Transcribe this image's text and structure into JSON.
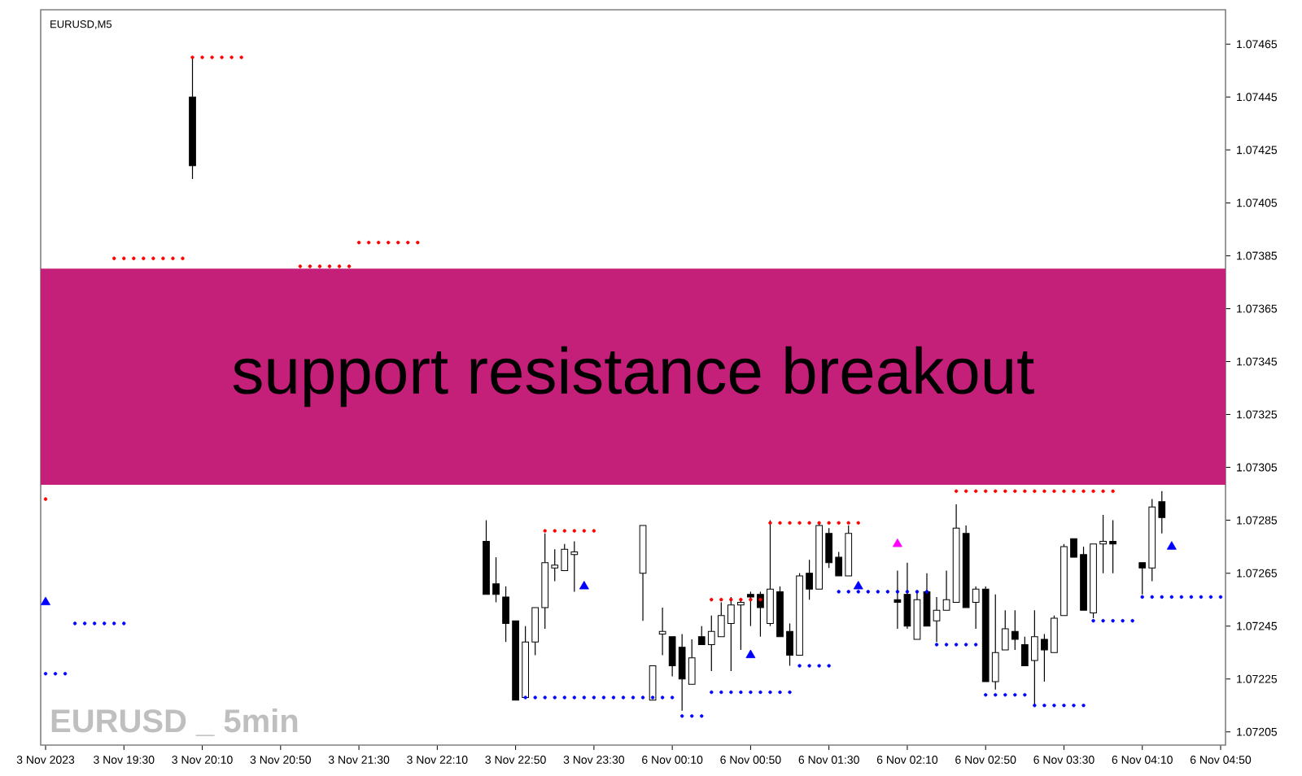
{
  "chart_data": {
    "type": "candlestick",
    "title": "support resistance breakout",
    "annotations": [
      "EURUSD,M5",
      "EURUSD _ 5min"
    ],
    "categories": [
      "3 Nov 2023",
      null,
      null,
      null,
      null,
      null,
      null,
      null,
      "3 Nov 19:30",
      null,
      null,
      null,
      null,
      null,
      null,
      null,
      "3 Nov 20:10",
      null,
      null,
      null,
      null,
      null,
      null,
      null,
      "3 Nov 20:50",
      null,
      null,
      null,
      null,
      null,
      null,
      null,
      "3 Nov 21:30",
      null,
      null,
      null,
      null,
      null,
      null,
      null,
      "3 Nov 22:10",
      null,
      null,
      null,
      null,
      null,
      null,
      null,
      "3 Nov 22:50",
      null,
      null,
      null,
      null,
      null,
      null,
      null,
      "3 Nov 23:30",
      null,
      null,
      null,
      null,
      null,
      null,
      null,
      "6 Nov 00:10",
      null,
      null,
      null,
      null,
      null,
      null,
      null,
      "6 Nov 00:50",
      null,
      null,
      null,
      null,
      null,
      null,
      null,
      "6 Nov 01:30",
      null,
      null,
      null,
      null,
      null,
      null,
      null,
      "6 Nov 02:10",
      null,
      null,
      null,
      null,
      null,
      null,
      null,
      "6 Nov 02:50",
      null,
      null,
      null,
      null,
      null,
      null,
      null,
      "6 Nov 03:30",
      null,
      null,
      null,
      null,
      null,
      null,
      null,
      "6 Nov 04:10",
      null,
      null,
      null,
      null,
      null,
      null,
      null,
      "6 Nov 04:50"
    ],
    "ohlc": [
      null,
      null,
      null,
      null,
      null,
      null,
      null,
      null,
      null,
      null,
      null,
      null,
      null,
      null,
      null,
      [
        1.07445,
        1.0746,
        1.07414,
        1.07419
      ],
      null,
      null,
      null,
      null,
      null,
      null,
      null,
      null,
      null,
      null,
      null,
      null,
      null,
      null,
      null,
      null,
      null,
      null,
      null,
      null,
      null,
      null,
      null,
      null,
      null,
      null,
      null,
      null,
      null,
      [
        1.07277,
        1.07285,
        1.07257,
        1.07257
      ],
      [
        1.07261,
        1.07271,
        1.07254,
        1.07257
      ],
      [
        1.07256,
        1.0726,
        1.07239,
        1.07246
      ],
      [
        1.07247,
        1.07247,
        1.07217,
        1.07217
      ],
      [
        1.07218,
        1.07245,
        1.07218,
        1.07239
      ],
      [
        1.07239,
        1.07252,
        1.07234,
        1.07252
      ],
      [
        1.07252,
        1.0728,
        1.07244,
        1.07269
      ],
      [
        1.07267,
        1.07274,
        1.07262,
        1.07268
      ],
      [
        1.07266,
        1.07276,
        1.07266,
        1.07274
      ],
      [
        1.07272,
        1.07277,
        1.07258,
        1.07273
      ],
      null,
      null,
      null,
      null,
      null,
      null,
      [
        1.07265,
        1.07283,
        1.07247,
        1.07283
      ],
      [
        1.07217,
        1.0723,
        1.07217,
        1.0723
      ],
      [
        1.07242,
        1.07252,
        1.07234,
        1.07243
      ],
      [
        1.07241,
        1.07241,
        1.07226,
        1.0723
      ],
      [
        1.07237,
        1.07242,
        1.07213,
        1.07225
      ],
      [
        1.07223,
        1.0724,
        1.07223,
        1.07233
      ],
      [
        1.07241,
        1.07245,
        1.07238,
        1.07238
      ],
      [
        1.07238,
        1.07249,
        1.07228,
        1.07243
      ],
      [
        1.07241,
        1.07254,
        1.07241,
        1.07249
      ],
      [
        1.07246,
        1.07256,
        1.07228,
        1.07253
      ],
      [
        1.07253,
        1.07255,
        1.07236,
        1.07254
      ],
      [
        1.07257,
        1.07258,
        1.07245,
        1.07256
      ],
      [
        1.07257,
        1.07258,
        1.07241,
        1.07252
      ],
      [
        1.07246,
        1.07285,
        1.07245,
        1.07259
      ],
      [
        1.07258,
        1.0726,
        1.07241,
        1.07241
      ],
      [
        1.07243,
        1.07246,
        1.0723,
        1.07234
      ],
      [
        1.07234,
        1.07265,
        1.07234,
        1.07264
      ],
      [
        1.07265,
        1.0727,
        1.07255,
        1.07259
      ],
      [
        1.07259,
        1.07284,
        1.07259,
        1.07283
      ],
      [
        1.0728,
        1.07282,
        1.07267,
        1.07269
      ],
      [
        1.07271,
        1.07273,
        1.07264,
        1.07264
      ],
      [
        1.07264,
        1.07283,
        1.07264,
        1.0728
      ],
      null,
      null,
      null,
      null,
      [
        1.07255,
        1.07266,
        1.07244,
        1.07254
      ],
      [
        1.07257,
        1.07269,
        1.07244,
        1.07245
      ],
      [
        1.0724,
        1.07258,
        1.0724,
        1.07255
      ],
      [
        1.07258,
        1.07265,
        1.07245,
        1.07245
      ],
      [
        1.07247,
        1.07256,
        1.07239,
        1.07251
      ],
      [
        1.07251,
        1.07266,
        1.07251,
        1.07255
      ],
      [
        1.07254,
        1.07291,
        1.07254,
        1.07282
      ],
      [
        1.0728,
        1.07283,
        1.07252,
        1.07252
      ],
      [
        1.07254,
        1.0726,
        1.07244,
        1.07259
      ],
      [
        1.07259,
        1.0726,
        1.07224,
        1.07224
      ],
      [
        1.07224,
        1.07257,
        1.07221,
        1.07235
      ],
      [
        1.07236,
        1.07251,
        1.07236,
        1.07244
      ],
      [
        1.07243,
        1.07251,
        1.07236,
        1.0724
      ],
      [
        1.07238,
        1.07241,
        1.0723,
        1.0723
      ],
      [
        1.07232,
        1.07251,
        1.07215,
        1.07241
      ],
      [
        1.0724,
        1.07242,
        1.07224,
        1.07236
      ],
      [
        1.07235,
        1.07249,
        1.07235,
        1.07248
      ],
      [
        1.07249,
        1.07276,
        1.07249,
        1.07275
      ],
      [
        1.07278,
        1.07278,
        1.07271,
        1.07271
      ],
      [
        1.07272,
        1.07275,
        1.07251,
        1.07251
      ],
      [
        1.0725,
        1.07276,
        1.07248,
        1.07276
      ],
      [
        1.07276,
        1.07287,
        1.07265,
        1.07277
      ],
      [
        1.07277,
        1.07285,
        1.07265,
        1.07276
      ],
      null,
      null,
      [
        1.07269,
        1.07269,
        1.07257,
        1.07267
      ],
      [
        1.07267,
        1.07293,
        1.07262,
        1.0729
      ],
      [
        1.07292,
        1.07296,
        1.0728,
        1.07286
      ],
      null,
      null,
      null,
      null,
      null,
      null
    ],
    "series": [
      {
        "type": "scatter",
        "marker": "circle",
        "color": "#ff0000",
        "values": [
          1.07293,
          null,
          null,
          null,
          null,
          null,
          null,
          1.07384,
          1.07384,
          1.07384,
          1.07384,
          1.07384,
          1.07384,
          1.07384,
          1.07384,
          1.0746,
          1.0746,
          1.0746,
          1.0746,
          1.0746,
          1.0746,
          null,
          null,
          null,
          null,
          null,
          1.07381,
          1.07381,
          1.07381,
          1.07381,
          1.07381,
          1.07381,
          1.0739,
          1.0739,
          1.0739,
          1.0739,
          1.0739,
          1.0739,
          1.0739,
          null,
          null,
          null,
          null,
          null,
          null,
          null,
          null,
          null,
          null,
          null,
          null,
          1.07281,
          1.07281,
          1.07281,
          1.07281,
          1.07281,
          1.07281,
          null,
          null,
          null,
          null,
          null,
          null,
          null,
          null,
          null,
          null,
          null,
          1.07255,
          1.07255,
          1.07255,
          1.07255,
          1.07255,
          1.07255,
          1.07284,
          1.07284,
          1.07284,
          1.07284,
          1.07284,
          1.07284,
          1.07284,
          1.07284,
          1.07284,
          1.07284,
          null,
          null,
          null,
          null,
          null,
          null,
          null,
          null,
          null,
          1.07296,
          1.07296,
          1.07296,
          1.07296,
          1.07296,
          1.07296,
          1.07296,
          1.07296,
          1.07296,
          1.07296,
          1.07296,
          1.07296,
          1.07296,
          1.07296,
          1.07296,
          1.07296,
          1.07296,
          null,
          null,
          null,
          null,
          null,
          null,
          null,
          null,
          null,
          null,
          null
        ]
      },
      {
        "type": "scatter",
        "marker": "circle",
        "color": "#0000ff",
        "values": [
          1.07227,
          1.07227,
          1.07227,
          1.07246,
          1.07246,
          1.07246,
          1.07246,
          1.07246,
          1.07246,
          null,
          null,
          null,
          null,
          null,
          null,
          null,
          null,
          null,
          null,
          null,
          null,
          null,
          null,
          null,
          null,
          null,
          null,
          null,
          null,
          null,
          null,
          null,
          null,
          null,
          null,
          null,
          null,
          null,
          null,
          null,
          null,
          null,
          null,
          null,
          null,
          null,
          null,
          null,
          null,
          1.07218,
          1.07218,
          1.07218,
          1.07218,
          1.07218,
          1.07218,
          1.07218,
          1.07218,
          1.07218,
          1.07218,
          1.07218,
          1.07218,
          1.07218,
          1.07218,
          1.07218,
          1.07218,
          1.07211,
          1.07211,
          1.07211,
          1.0722,
          1.0722,
          1.0722,
          1.0722,
          1.0722,
          1.0722,
          1.0722,
          1.0722,
          1.0722,
          1.0723,
          1.0723,
          1.0723,
          1.0723,
          1.07258,
          1.07258,
          1.07258,
          1.07258,
          1.07258,
          1.07258,
          1.07258,
          1.07258,
          1.07258,
          1.07258,
          1.07238,
          1.07238,
          1.07238,
          1.07238,
          1.07238,
          1.07219,
          1.07219,
          1.07219,
          1.07219,
          1.07219,
          1.07215,
          1.07215,
          1.07215,
          1.07215,
          1.07215,
          1.07215,
          1.07247,
          1.07247,
          1.07247,
          1.07247,
          1.07247,
          1.07256,
          1.07256,
          1.07256,
          1.07256,
          1.07256,
          1.07256,
          1.07256,
          1.07256,
          1.07256
        ]
      },
      {
        "type": "scatter",
        "marker": "triangle",
        "color": "#0000ff",
        "values": [
          1.07254,
          null,
          null,
          null,
          null,
          null,
          null,
          null,
          null,
          null,
          null,
          null,
          null,
          null,
          null,
          null,
          null,
          null,
          null,
          null,
          null,
          null,
          null,
          null,
          null,
          null,
          null,
          null,
          null,
          null,
          null,
          null,
          null,
          null,
          null,
          null,
          null,
          null,
          null,
          null,
          null,
          null,
          null,
          null,
          null,
          null,
          null,
          null,
          null,
          null,
          null,
          null,
          null,
          null,
          null,
          1.0726,
          null,
          null,
          null,
          null,
          null,
          null,
          null,
          null,
          null,
          null,
          null,
          null,
          null,
          null,
          null,
          null,
          1.07234,
          null,
          null,
          null,
          null,
          null,
          null,
          null,
          null,
          null,
          null,
          1.0726,
          null,
          null,
          null,
          null,
          null,
          null,
          null,
          null,
          null,
          null,
          null,
          null,
          null,
          null,
          null,
          null,
          null,
          null,
          null,
          null,
          null,
          null,
          null,
          null,
          null,
          null,
          null,
          null,
          null,
          null,
          null,
          1.07275,
          null,
          null,
          null,
          null,
          null
        ]
      },
      {
        "type": "scatter",
        "marker": "triangle",
        "color": "#ff00ff",
        "values": [
          null,
          null,
          null,
          null,
          null,
          null,
          null,
          null,
          null,
          null,
          null,
          null,
          null,
          null,
          null,
          null,
          null,
          null,
          null,
          null,
          null,
          null,
          null,
          null,
          null,
          null,
          null,
          null,
          null,
          null,
          null,
          null,
          null,
          null,
          null,
          null,
          null,
          null,
          null,
          null,
          null,
          null,
          null,
          null,
          null,
          null,
          null,
          null,
          null,
          null,
          null,
          null,
          null,
          null,
          null,
          null,
          null,
          null,
          null,
          null,
          null,
          null,
          null,
          null,
          null,
          null,
          null,
          null,
          null,
          null,
          null,
          null,
          null,
          null,
          null,
          null,
          null,
          null,
          null,
          null,
          null,
          null,
          null,
          null,
          null,
          null,
          null,
          1.07276,
          null,
          null,
          null,
          null,
          null,
          null,
          null,
          null,
          null,
          null,
          null,
          null,
          null,
          null,
          null,
          null,
          null,
          null,
          null,
          null,
          null,
          null,
          null,
          null,
          null,
          null,
          null,
          null,
          null,
          null,
          null,
          null,
          null
        ]
      }
    ],
    "ylim": [
      1.072,
      1.07478
    ],
    "yticks": [
      1.07205,
      1.07225,
      1.07245,
      1.07265,
      1.07285,
      1.07305,
      1.07325,
      1.07345,
      1.07365,
      1.07385,
      1.07405,
      1.07425,
      1.07445,
      1.07465
    ]
  }
}
